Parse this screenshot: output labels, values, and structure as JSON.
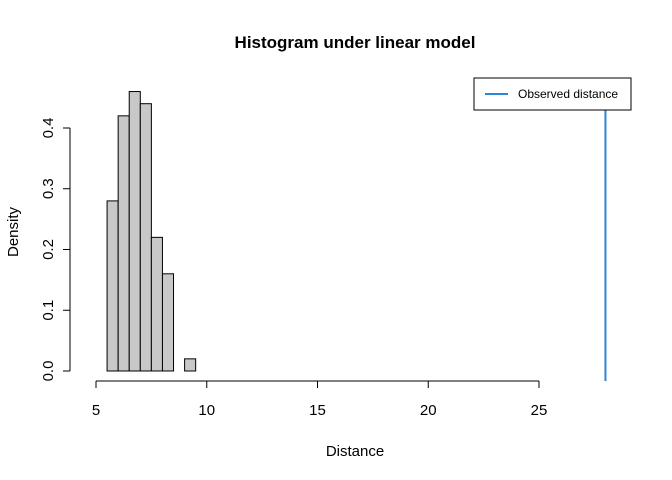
{
  "chart_data": {
    "type": "bar",
    "title": "Histogram under linear model",
    "xlabel": "Distance",
    "ylabel": "Density",
    "xlim": [
      5,
      25
    ],
    "ylim": [
      0,
      0.4
    ],
    "x_ticks": [
      "5",
      "10",
      "15",
      "20",
      "25"
    ],
    "y_ticks": [
      "0.0",
      "0.1",
      "0.2",
      "0.3",
      "0.4"
    ],
    "bins": [
      {
        "x0": 5.5,
        "x1": 6.0,
        "density": 0.28
      },
      {
        "x0": 6.0,
        "x1": 6.5,
        "density": 0.42
      },
      {
        "x0": 6.5,
        "x1": 7.0,
        "density": 0.46
      },
      {
        "x0": 7.0,
        "x1": 7.5,
        "density": 0.44
      },
      {
        "x0": 7.5,
        "x1": 8.0,
        "density": 0.22
      },
      {
        "x0": 8.0,
        "x1": 8.5,
        "density": 0.16
      },
      {
        "x0": 8.5,
        "x1": 9.0,
        "density": 0.0
      },
      {
        "x0": 9.0,
        "x1": 9.5,
        "density": 0.02
      }
    ],
    "observed_distance": 28,
    "bar_color": "#c8c8c8",
    "line_color": "#2a86d6",
    "legend": {
      "position": "top-right",
      "label": "Observed distance"
    },
    "grid": false
  }
}
